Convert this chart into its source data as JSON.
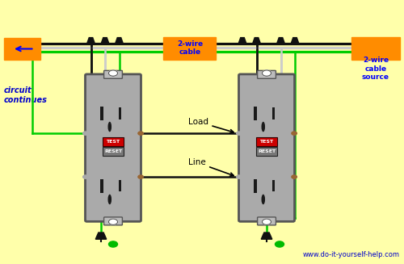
{
  "bg_color": "#FFFFAA",
  "outlet_color": "#AAAAAA",
  "outlet_border": "#555555",
  "wire_black": "#111111",
  "wire_white": "#CCCCCC",
  "wire_green": "#00CC00",
  "label_color": "#0000CC",
  "orange_box": "#FF8C00",
  "red_btn": "#CC0000",
  "gray_btn": "#777777",
  "brown_screw": "#996633",
  "title_text": "www.do-it-yourself-help.com",
  "label_circuit": "circuit\ncontinues",
  "label_2wire1": "2-wire\ncable",
  "label_2wire2": "2-wire\ncable\nsource",
  "label_load": "Load",
  "label_line": "Line",
  "o1x": 0.28,
  "o2x": 0.66,
  "oy": 0.44,
  "ow": 0.13,
  "oh": 0.55
}
